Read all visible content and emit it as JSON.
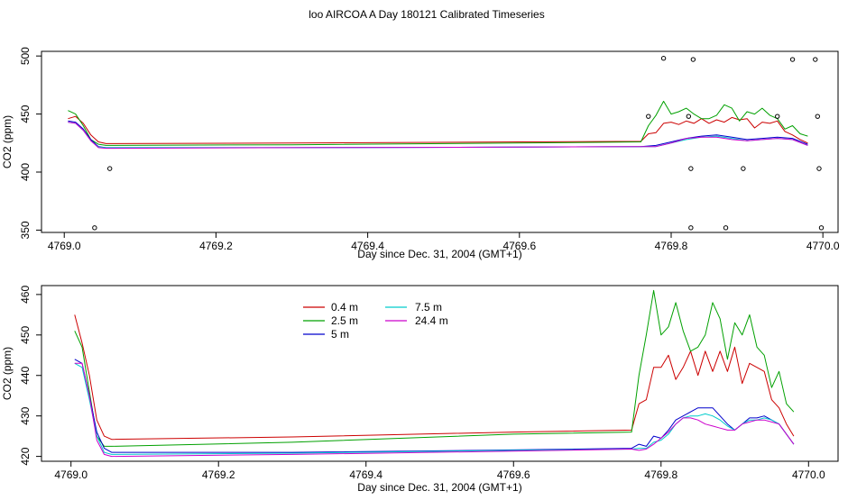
{
  "figure": {
    "title": "loo AIRCOA A  Day 180121  Calibrated Timeseries"
  },
  "chart_data": [
    {
      "type": "line",
      "xlabel": "Day since Dec. 31, 2004 (GMT+1)",
      "ylabel": "CO2 (ppm)",
      "xlim": [
        4768.97,
        4770.02
      ],
      "ylim": [
        348,
        504
      ],
      "xticks": [
        4769.0,
        4769.2,
        4769.4,
        4769.6,
        4769.8,
        4770.0
      ],
      "xtick_labels": [
        "4769.0",
        "4769.2",
        "4769.4",
        "4769.6",
        "4769.8",
        "4770.0"
      ],
      "yticks": [
        350,
        400,
        450,
        500
      ],
      "ytick_labels": [
        "350",
        "400",
        "450",
        "500"
      ],
      "grid": false,
      "series": [
        {
          "color": "#cc0000",
          "x": [
            4769.005,
            4769.015,
            4769.025,
            4769.035,
            4769.045,
            4769.055,
            4769.3,
            4769.6,
            4769.76,
            4769.77,
            4769.78,
            4769.79,
            4769.8,
            4769.81,
            4769.82,
            4769.83,
            4769.84,
            4769.85,
            4769.86,
            4769.87,
            4769.88,
            4769.89,
            4769.9,
            4769.91,
            4769.92,
            4769.93,
            4769.94,
            4769.95,
            4769.96,
            4769.97,
            4769.98
          ],
          "y": [
            446,
            448,
            442,
            432,
            426,
            424.5,
            425,
            426,
            426.5,
            433,
            434,
            442,
            443,
            441,
            444,
            442,
            446,
            442,
            445,
            443,
            447,
            445,
            446,
            438,
            443,
            442,
            444,
            435,
            432,
            428,
            425
          ]
        },
        {
          "color": "#00a000",
          "x": [
            4769.005,
            4769.015,
            4769.025,
            4769.035,
            4769.045,
            4769.055,
            4769.3,
            4769.6,
            4769.76,
            4769.77,
            4769.78,
            4769.79,
            4769.8,
            4769.81,
            4769.82,
            4769.83,
            4769.84,
            4769.85,
            4769.86,
            4769.87,
            4769.88,
            4769.89,
            4769.9,
            4769.91,
            4769.92,
            4769.93,
            4769.94,
            4769.95,
            4769.96,
            4769.97,
            4769.98
          ],
          "y": [
            453,
            450,
            440,
            428,
            424,
            423,
            423.5,
            425,
            426,
            440,
            449,
            461,
            450,
            452,
            455,
            450,
            446,
            446,
            449,
            458,
            455,
            444,
            452,
            450,
            455,
            449,
            446,
            437,
            440,
            433,
            431
          ]
        },
        {
          "color": "#0000cc",
          "x": [
            4769.005,
            4769.015,
            4769.025,
            4769.035,
            4769.045,
            4769.055,
            4769.3,
            4769.6,
            4769.76,
            4769.78,
            4769.8,
            4769.82,
            4769.84,
            4769.86,
            4769.88,
            4769.9,
            4769.92,
            4769.94,
            4769.96,
            4769.98
          ],
          "y": [
            444,
            443,
            437,
            428,
            422,
            421,
            421,
            421.5,
            422,
            423,
            426,
            429,
            431,
            432,
            430,
            428,
            429,
            430,
            429,
            424
          ]
        },
        {
          "color": "#00cccc",
          "x": [
            4769.005,
            4769.015,
            4769.025,
            4769.035,
            4769.045,
            4769.055,
            4769.3,
            4769.6,
            4769.76,
            4769.78,
            4769.8,
            4769.82,
            4769.84,
            4769.86,
            4769.88,
            4769.9,
            4769.92,
            4769.94,
            4769.96,
            4769.98
          ],
          "y": [
            443,
            442,
            436,
            427,
            421.5,
            421,
            421,
            421.5,
            422,
            422,
            425,
            428,
            430,
            431,
            429,
            427,
            428,
            429,
            428,
            423
          ]
        },
        {
          "color": "#cc00cc",
          "x": [
            4769.005,
            4769.015,
            4769.025,
            4769.035,
            4769.045,
            4769.055,
            4769.3,
            4769.6,
            4769.76,
            4769.78,
            4769.8,
            4769.82,
            4769.84,
            4769.86,
            4769.88,
            4769.9,
            4769.92,
            4769.94,
            4769.96,
            4769.98
          ],
          "y": [
            443,
            442,
            436,
            427,
            421,
            420.5,
            421,
            421.5,
            422,
            422,
            425,
            429,
            430,
            430,
            428,
            427,
            428,
            429,
            428,
            423
          ]
        }
      ],
      "points": {
        "x": [
          4769.04,
          4769.06,
          4769.77,
          4769.79,
          4769.823,
          4769.826,
          4769.826,
          4769.829,
          4769.872,
          4769.895,
          4769.94,
          4769.96,
          4769.99,
          4769.993,
          4769.995,
          4769.998
        ],
        "y": [
          352,
          403,
          448,
          498,
          448,
          403,
          352,
          497,
          352,
          403,
          448,
          497,
          497,
          448,
          403,
          352
        ]
      }
    },
    {
      "type": "line",
      "xlabel": "Day since Dec. 31, 2004 (GMT+1)",
      "ylabel": "CO2 (ppm)",
      "xlim": [
        4768.96,
        4770.04
      ],
      "ylim": [
        418.8,
        462.2
      ],
      "xticks": [
        4769.0,
        4769.2,
        4769.4,
        4769.6,
        4769.8,
        4770.0
      ],
      "xtick_labels": [
        "4769.0",
        "4769.2",
        "4769.4",
        "4769.6",
        "4769.8",
        "4770.0"
      ],
      "yticks": [
        420,
        430,
        440,
        450,
        460
      ],
      "ytick_labels": [
        "420",
        "430",
        "440",
        "450",
        "460"
      ],
      "grid": false,
      "legend": {
        "placement": "top-center",
        "entries": [
          {
            "label": "0.4 m",
            "color": "#cc0000"
          },
          {
            "label": "2.5 m",
            "color": "#00a000"
          },
          {
            "label": "5 m",
            "color": "#0000cc"
          },
          {
            "label": "7.5 m",
            "color": "#00cccc"
          },
          {
            "label": "24.4 m",
            "color": "#cc00cc"
          }
        ]
      },
      "series": [
        {
          "name": "0.4 m",
          "color": "#cc0000",
          "x": [
            4769.005,
            4769.015,
            4769.025,
            4769.035,
            4769.045,
            4769.055,
            4769.3,
            4769.6,
            4769.76,
            4769.77,
            4769.78,
            4769.79,
            4769.8,
            4769.81,
            4769.82,
            4769.83,
            4769.84,
            4769.85,
            4769.86,
            4769.87,
            4769.88,
            4769.89,
            4769.9,
            4769.91,
            4769.92,
            4769.93,
            4769.94,
            4769.95,
            4769.96,
            4769.97,
            4769.98
          ],
          "y": [
            455,
            448,
            440,
            429,
            425,
            424.2,
            424.8,
            426,
            426.5,
            433,
            434,
            442,
            442,
            445,
            439,
            442,
            446,
            440,
            446,
            441,
            446,
            441,
            447,
            438,
            443,
            442,
            441,
            434,
            432,
            428,
            425
          ]
        },
        {
          "name": "2.5 m",
          "color": "#00a000",
          "x": [
            4769.005,
            4769.015,
            4769.025,
            4769.035,
            4769.045,
            4769.055,
            4769.3,
            4769.6,
            4769.76,
            4769.77,
            4769.78,
            4769.79,
            4769.8,
            4769.81,
            4769.82,
            4769.83,
            4769.84,
            4769.85,
            4769.86,
            4769.87,
            4769.88,
            4769.89,
            4769.9,
            4769.91,
            4769.92,
            4769.93,
            4769.94,
            4769.95,
            4769.96,
            4769.97,
            4769.98
          ],
          "y": [
            451,
            447,
            436,
            425,
            422.5,
            422.5,
            423.5,
            425.5,
            426,
            440,
            450,
            461,
            450,
            452,
            458,
            451,
            446,
            447,
            450,
            458,
            454,
            444,
            453,
            450,
            455,
            447,
            445,
            437,
            441,
            433,
            431
          ]
        },
        {
          "name": "5 m",
          "color": "#0000cc",
          "x": [
            4769.005,
            4769.015,
            4769.025,
            4769.035,
            4769.045,
            4769.055,
            4769.3,
            4769.6,
            4769.76,
            4769.77,
            4769.78,
            4769.79,
            4769.8,
            4769.81,
            4769.82,
            4769.83,
            4769.84,
            4769.85,
            4769.86,
            4769.87,
            4769.88,
            4769.89,
            4769.9,
            4769.91,
            4769.92,
            4769.93,
            4769.94,
            4769.95,
            4769.96,
            4769.97,
            4769.98
          ],
          "y": [
            444,
            443,
            435,
            426,
            422,
            421,
            421,
            421.6,
            422,
            423,
            422.5,
            425,
            424.5,
            426.5,
            429,
            430,
            431,
            432,
            432,
            432,
            430,
            428,
            426.5,
            428,
            429.5,
            429.5,
            430,
            429,
            428,
            425.5,
            423
          ]
        },
        {
          "name": "7.5 m",
          "color": "#00cccc",
          "x": [
            4769.005,
            4769.015,
            4769.025,
            4769.035,
            4769.045,
            4769.055,
            4769.3,
            4769.6,
            4769.76,
            4769.77,
            4769.78,
            4769.79,
            4769.8,
            4769.81,
            4769.82,
            4769.83,
            4769.84,
            4769.85,
            4769.86,
            4769.87,
            4769.88,
            4769.89,
            4769.9,
            4769.91,
            4769.92,
            4769.93,
            4769.94,
            4769.95,
            4769.96,
            4769.97,
            4769.98
          ],
          "y": [
            443,
            442,
            434,
            425,
            421,
            420.5,
            420.8,
            421.5,
            421.8,
            422,
            422,
            423.5,
            424,
            425.5,
            428,
            429.5,
            430,
            430,
            430.5,
            430,
            429,
            427.5,
            426.5,
            428,
            429,
            429,
            429.5,
            429,
            428,
            425.5,
            423
          ]
        },
        {
          "name": "24.4 m",
          "color": "#cc00cc",
          "x": [
            4769.005,
            4769.015,
            4769.025,
            4769.035,
            4769.045,
            4769.055,
            4769.3,
            4769.6,
            4769.76,
            4769.77,
            4769.78,
            4769.79,
            4769.8,
            4769.81,
            4769.82,
            4769.83,
            4769.84,
            4769.85,
            4769.86,
            4769.87,
            4769.88,
            4769.89,
            4769.9,
            4769.91,
            4769.92,
            4769.93,
            4769.94,
            4769.95,
            4769.96,
            4769.97,
            4769.98
          ],
          "y": [
            443,
            443,
            435,
            424,
            420.5,
            420,
            420.5,
            421.3,
            421.8,
            421.5,
            421.8,
            423,
            424.5,
            426,
            428,
            429.5,
            429.5,
            429,
            428,
            427.5,
            427,
            426.5,
            426.5,
            428,
            428.5,
            429,
            429,
            428.5,
            428,
            425.5,
            423
          ]
        }
      ]
    }
  ]
}
